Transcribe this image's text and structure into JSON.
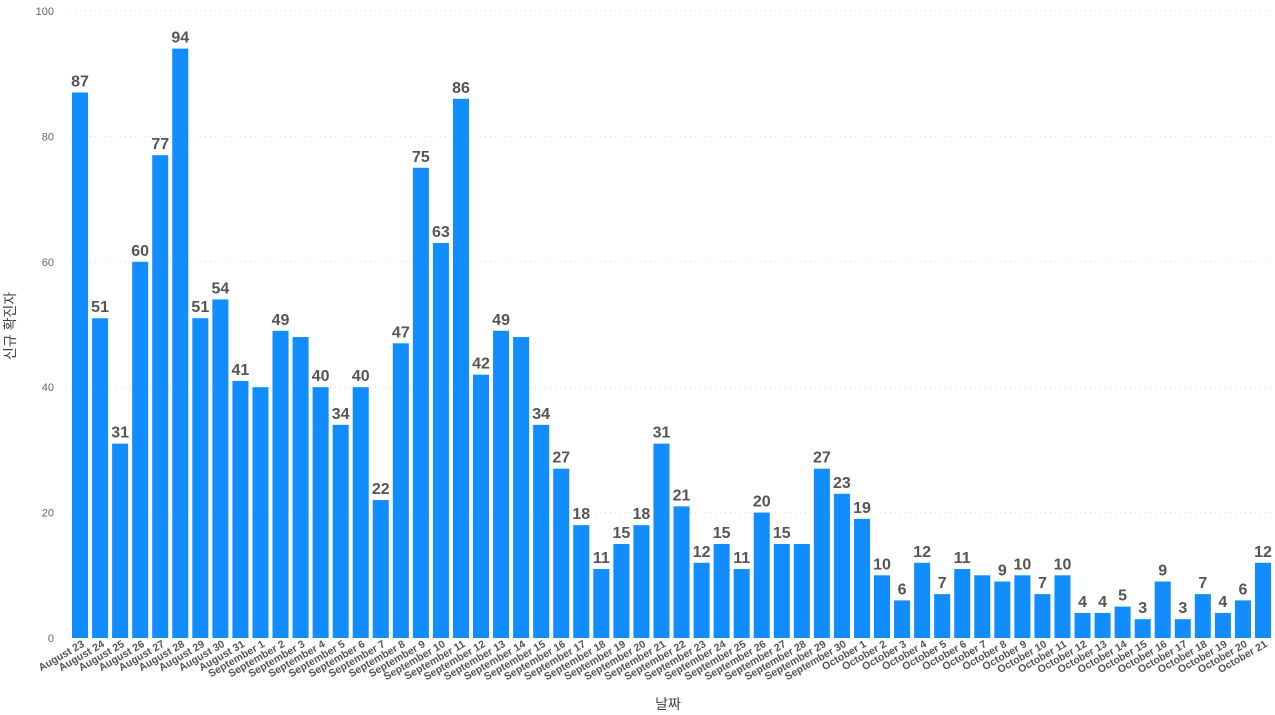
{
  "chart_data": {
    "type": "bar",
    "title": "",
    "xlabel": "날짜",
    "ylabel": "신규 확진자",
    "ylim": [
      0,
      100
    ],
    "yticks": [
      0,
      20,
      40,
      60,
      80,
      100
    ],
    "grid": true,
    "legend": "none",
    "bar_color": "#118DFF",
    "categories": [
      "August 23",
      "August 24",
      "August 25",
      "August 26",
      "August 27",
      "August 28",
      "August 29",
      "August 30",
      "August 31",
      "September 1",
      "September 2",
      "September 3",
      "September 4",
      "September 5",
      "September 6",
      "September 7",
      "September 8",
      "September 9",
      "September 10",
      "September 11",
      "September 12",
      "September 13",
      "September 14",
      "September 15",
      "September 16",
      "September 17",
      "September 18",
      "September 19",
      "September 20",
      "September 21",
      "September 22",
      "September 23",
      "September 24",
      "September 25",
      "September 26",
      "September 27",
      "September 28",
      "September 29",
      "September 30",
      "October 1",
      "October 2",
      "October 3",
      "October 4",
      "October 5",
      "October 6",
      "October 7",
      "October 8",
      "October 9",
      "October 10",
      "October 11",
      "October 12",
      "October 13",
      "October 14",
      "October 15",
      "October 16",
      "October 17",
      "October 18",
      "October 19",
      "October 20",
      "October 21"
    ],
    "values": [
      87,
      51,
      31,
      60,
      77,
      94,
      51,
      54,
      41,
      40,
      49,
      48,
      40,
      34,
      40,
      22,
      47,
      75,
      63,
      86,
      42,
      49,
      48,
      34,
      27,
      18,
      11,
      15,
      18,
      31,
      21,
      12,
      15,
      11,
      20,
      15,
      15,
      27,
      23,
      19,
      10,
      6,
      12,
      7,
      11,
      10,
      9,
      10,
      7,
      10,
      4,
      4,
      5,
      3,
      9,
      3,
      7,
      4,
      6,
      12
    ],
    "data_labels": [
      "87",
      "51",
      "31",
      "60",
      "77",
      "94",
      "51",
      "54",
      "41",
      "",
      "49",
      "",
      "40",
      "34",
      "40",
      "22",
      "47",
      "75",
      "63",
      "86",
      "42",
      "49",
      "",
      "34",
      "27",
      "18",
      "11",
      "15",
      "18",
      "31",
      "21",
      "12",
      "15",
      "11",
      "20",
      "15",
      "",
      "27",
      "23",
      "19",
      "10",
      "6",
      "12",
      "7",
      "11",
      "",
      "9",
      "10",
      "7",
      "10",
      "4",
      "4",
      "5",
      "3",
      "9",
      "3",
      "7",
      "4",
      "6",
      "12"
    ]
  }
}
